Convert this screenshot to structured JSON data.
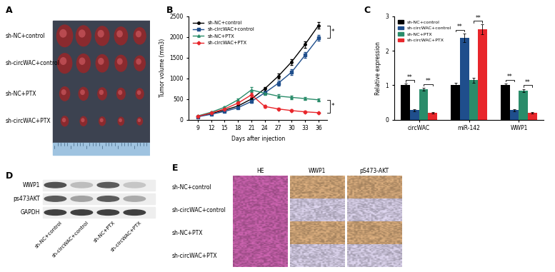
{
  "chart_data": [
    {
      "panel_label": "B",
      "type": "line",
      "x": [
        9,
        12,
        15,
        18,
        21,
        24,
        27,
        30,
        33,
        36
      ],
      "xlim": [
        7,
        38
      ],
      "xticks": [
        9,
        12,
        15,
        18,
        21,
        24,
        27,
        30,
        33,
        36
      ],
      "ylim": [
        0,
        2500
      ],
      "yticks": [
        0,
        500,
        1000,
        1500,
        2000,
        2500
      ],
      "x_label": "Days after injection",
      "y_label": "Tumor volume (mm3)",
      "legend": "upper left",
      "grid": false,
      "series": [
        {
          "name": "sh-NC+control",
          "color": "#000000",
          "marker": "circle",
          "values": [
            80,
            150,
            230,
            330,
            500,
            750,
            1050,
            1400,
            1820,
            2280
          ],
          "errors": [
            10,
            12,
            15,
            20,
            30,
            40,
            60,
            70,
            80,
            80
          ]
        },
        {
          "name": "sh-circWAC+control",
          "color": "#1f4e8c",
          "marker": "square",
          "values": [
            70,
            130,
            200,
            290,
            440,
            650,
            880,
            1150,
            1560,
            1980
          ],
          "errors": [
            10,
            12,
            15,
            20,
            30,
            40,
            60,
            70,
            70,
            70
          ]
        },
        {
          "name": "sh-NC+PTX",
          "color": "#2a8c6a",
          "marker": "triangle",
          "values": [
            90,
            180,
            300,
            480,
            720,
            640,
            570,
            540,
            510,
            480
          ],
          "errors": [
            10,
            15,
            20,
            30,
            60,
            40,
            40,
            40,
            40,
            40
          ]
        },
        {
          "name": "sh-circWAC+PTX",
          "color": "#e8262b",
          "marker": "diamond",
          "values": [
            80,
            160,
            260,
            400,
            600,
            320,
            260,
            220,
            190,
            170
          ],
          "errors": [
            10,
            15,
            20,
            30,
            50,
            40,
            30,
            25,
            20,
            20
          ]
        }
      ],
      "significance": [
        {
          "series": [
            "sh-NC+control",
            "sh-circWAC+control"
          ],
          "label": "*"
        },
        {
          "series": [
            "sh-NC+PTX",
            "sh-circWAC+PTX"
          ],
          "label": "*"
        }
      ]
    },
    {
      "panel_label": "C",
      "type": "bar",
      "categories": [
        "circWAC",
        "miR-142",
        "WWP1"
      ],
      "ylim": [
        0,
        3
      ],
      "yticks": [
        0,
        1,
        2,
        3
      ],
      "y_label": "Relative expression",
      "legend": "upper left",
      "grid": false,
      "series": [
        {
          "name": "sh-NC+control",
          "color": "#000000",
          "values": [
            1.0,
            1.0,
            1.0
          ],
          "errors": [
            0.04,
            0.06,
            0.05
          ]
        },
        {
          "name": "sh-circWAC+control",
          "color": "#1f4e8c",
          "values": [
            0.28,
            2.38,
            0.28
          ],
          "errors": [
            0.03,
            0.12,
            0.03
          ]
        },
        {
          "name": "sh-NC+PTX",
          "color": "#2a8c6a",
          "values": [
            0.88,
            1.15,
            0.85
          ],
          "errors": [
            0.04,
            0.07,
            0.04
          ]
        },
        {
          "name": "sh-circWAC+PTX",
          "color": "#e8262b",
          "values": [
            0.2,
            2.62,
            0.2
          ],
          "errors": [
            0.02,
            0.14,
            0.03
          ]
        }
      ],
      "significance": [
        {
          "category": "circWAC",
          "series": [
            "sh-NC+control",
            "sh-circWAC+control"
          ],
          "label": "**"
        },
        {
          "category": "circWAC",
          "series": [
            "sh-NC+PTX",
            "sh-circWAC+PTX"
          ],
          "label": "**"
        },
        {
          "category": "miR-142",
          "series": [
            "sh-NC+control",
            "sh-circWAC+control"
          ],
          "label": "**"
        },
        {
          "category": "miR-142",
          "series": [
            "sh-NC+PTX",
            "sh-circWAC+PTX"
          ],
          "label": "**"
        },
        {
          "category": "WWP1",
          "series": [
            "sh-NC+control",
            "sh-circWAC+control"
          ],
          "label": "**"
        },
        {
          "category": "WWP1",
          "series": [
            "sh-NC+PTX",
            "sh-circWAC+PTX"
          ],
          "label": "**"
        }
      ]
    }
  ],
  "panels": {
    "A": {
      "panel_label": "A",
      "rows": [
        "sh-NC+control",
        "sh-circWAC+control",
        "sh-NC+PTX",
        "sh-circWAC+PTX"
      ]
    },
    "D": {
      "panel_label": "D",
      "bands": [
        "WWP1",
        "ps473AKT",
        "GAPDH"
      ],
      "lanes": [
        "sh-NC+control",
        "sh-circWAC+control",
        "sh-NC+PTX",
        "sh-circWAC+PTX"
      ]
    },
    "E": {
      "panel_label": "E",
      "columns": [
        "HE",
        "WWP1",
        "pS473-AKT"
      ],
      "rows": [
        "sh-NC+control",
        "sh-circWAC+control",
        "sh-NC+PTX",
        "sh-circWAC+PTX"
      ]
    }
  }
}
